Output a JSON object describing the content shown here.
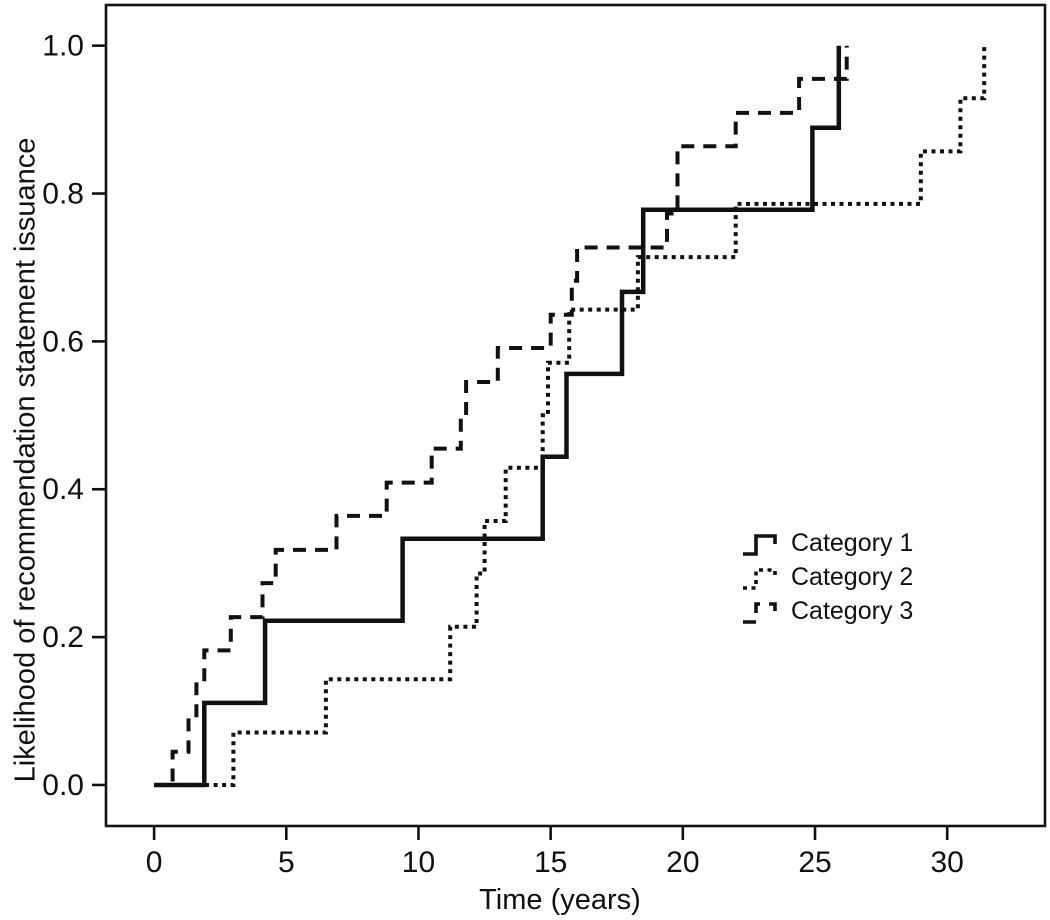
{
  "figure": {
    "background": "#ffffff",
    "line_color": "#111111"
  },
  "axes": {
    "x_label": "Time (years)",
    "y_label": "Likelihood of recommendation statement issuance",
    "x_tick_labels": [
      "0",
      "5",
      "10",
      "15",
      "20",
      "25",
      "30"
    ],
    "y_tick_labels": [
      "0.0",
      "0.2",
      "0.4",
      "0.6",
      "0.8",
      "1.0"
    ]
  },
  "legend": {
    "items": [
      {
        "label": "Category 1",
        "style": "solid"
      },
      {
        "label": "Category 2",
        "style": "dotted"
      },
      {
        "label": "Category 3",
        "style": "dashed"
      }
    ]
  },
  "chart_data": {
    "type": "line",
    "subtype": "kaplan-meier-step",
    "title": "",
    "xlabel": "Time (years)",
    "ylabel": "Likelihood of recommendation statement issuance",
    "xlim": [
      -1.82,
      33.7
    ],
    "ylim": [
      -0.0555,
      1.055
    ],
    "x_ticks": [
      0,
      5,
      10,
      15,
      20,
      25,
      30
    ],
    "y_ticks": [
      0.0,
      0.2,
      0.4,
      0.6,
      0.8,
      1.0
    ],
    "grid": false,
    "legend_position": "center-right",
    "series": [
      {
        "name": "Category 1",
        "line_style": "solid",
        "n_events": 9,
        "step_points": [
          [
            0,
            0
          ],
          [
            1.9,
            0.111
          ],
          [
            4.2,
            0.222
          ],
          [
            9.4,
            0.333
          ],
          [
            14.7,
            0.444
          ],
          [
            15.6,
            0.556
          ],
          [
            17.7,
            0.667
          ],
          [
            18.5,
            0.778
          ],
          [
            24.9,
            0.889
          ],
          [
            25.9,
            1.0
          ]
        ]
      },
      {
        "name": "Category 2",
        "line_style": "dotted",
        "n_events": 14,
        "step_points": [
          [
            0,
            0
          ],
          [
            3.0,
            0.071
          ],
          [
            6.5,
            0.143
          ],
          [
            11.2,
            0.214
          ],
          [
            12.2,
            0.286
          ],
          [
            12.5,
            0.357
          ],
          [
            13.3,
            0.429
          ],
          [
            14.7,
            0.5
          ],
          [
            14.9,
            0.571
          ],
          [
            15.7,
            0.643
          ],
          [
            18.3,
            0.714
          ],
          [
            22.0,
            0.786
          ],
          [
            29.0,
            0.857
          ],
          [
            30.5,
            0.929
          ],
          [
            31.4,
            1.0
          ]
        ]
      },
      {
        "name": "Category 3",
        "line_style": "dashed",
        "n_events": 22,
        "step_points": [
          [
            0,
            0
          ],
          [
            0.7,
            0.045
          ],
          [
            1.3,
            0.091
          ],
          [
            1.6,
            0.136
          ],
          [
            1.9,
            0.182
          ],
          [
            2.9,
            0.227
          ],
          [
            4.1,
            0.273
          ],
          [
            4.6,
            0.318
          ],
          [
            6.9,
            0.364
          ],
          [
            8.8,
            0.409
          ],
          [
            10.5,
            0.455
          ],
          [
            11.6,
            0.5
          ],
          [
            11.8,
            0.545
          ],
          [
            13.0,
            0.591
          ],
          [
            15.0,
            0.636
          ],
          [
            15.8,
            0.682
          ],
          [
            16.0,
            0.727
          ],
          [
            19.4,
            0.773
          ],
          [
            19.8,
            0.864
          ],
          [
            22.0,
            0.909
          ],
          [
            24.4,
            0.955
          ],
          [
            26.2,
            1.0
          ]
        ]
      }
    ]
  }
}
